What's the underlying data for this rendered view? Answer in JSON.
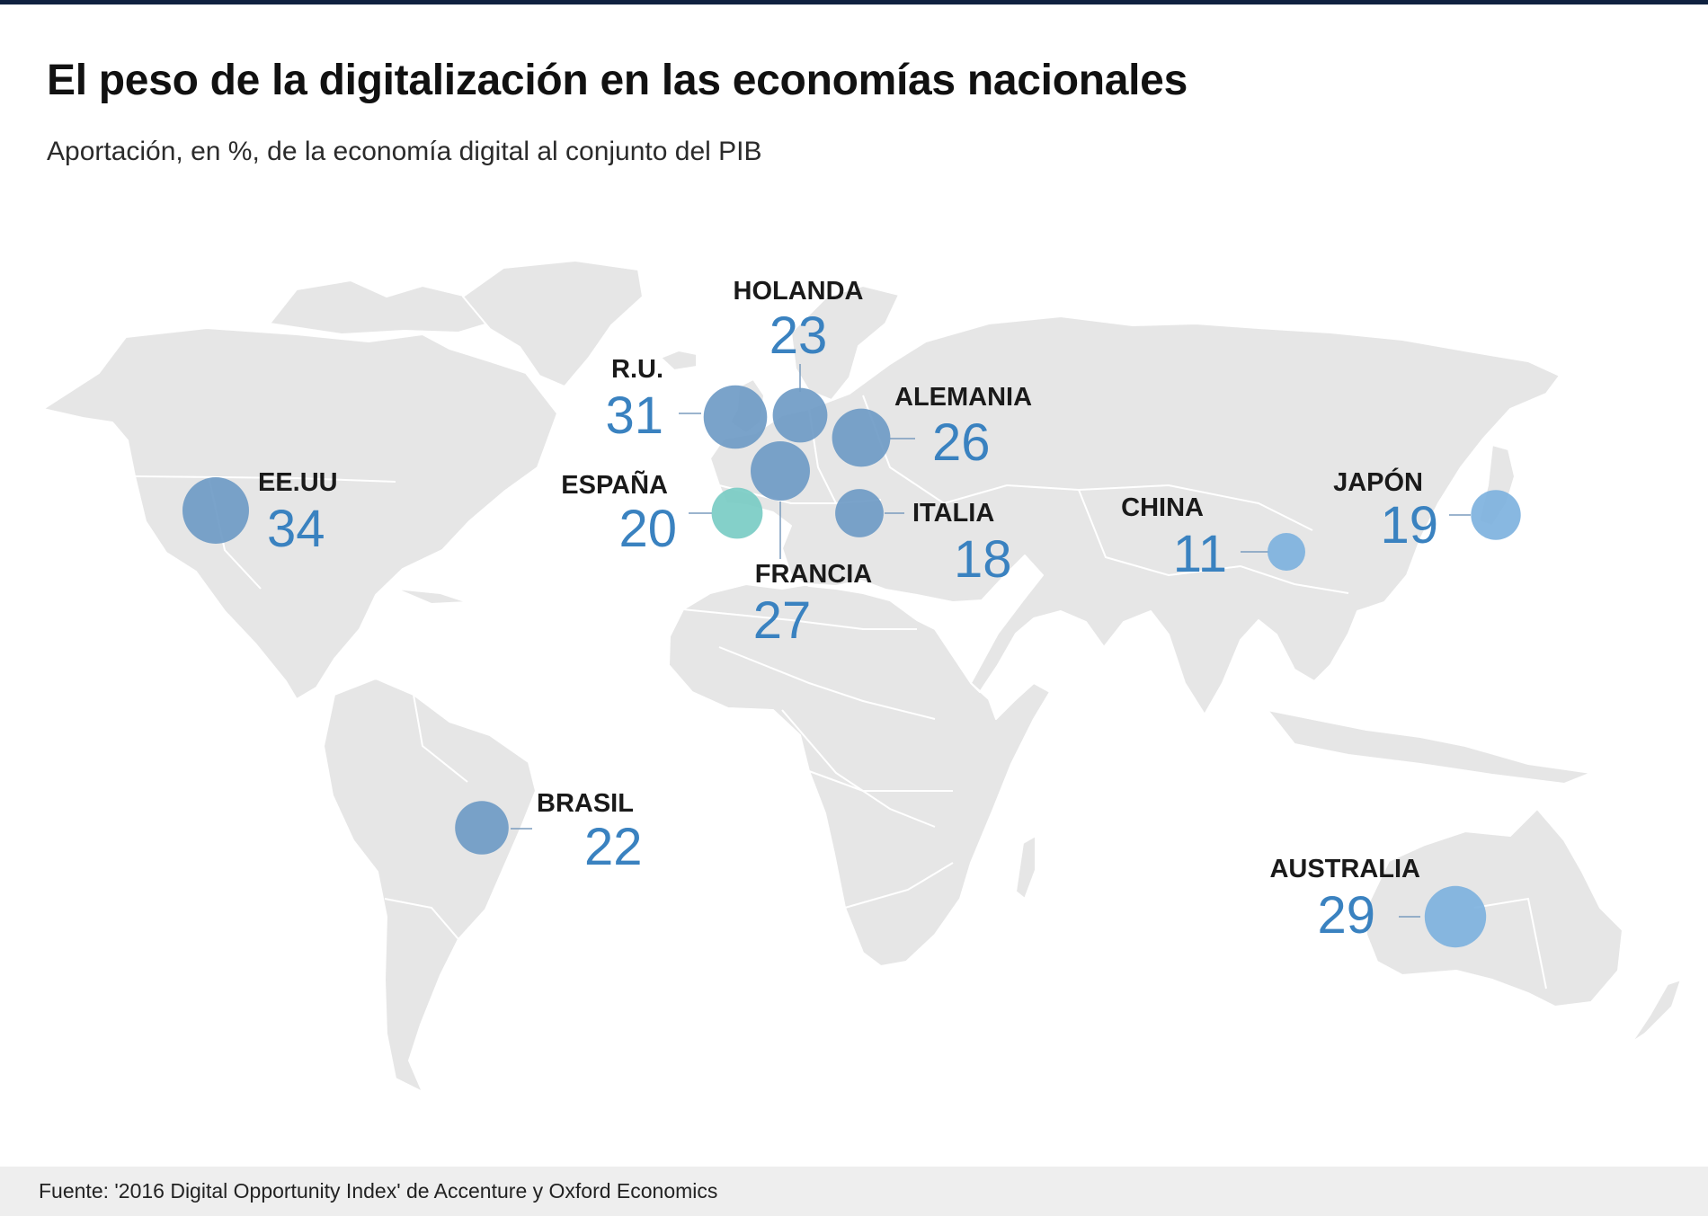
{
  "header": {
    "title": "El peso de la digitalización en las economías nacionales",
    "subtitle": "Aportación, en %, de la economía digital al conjunto del PIB"
  },
  "chart_data": {
    "type": "proportional-symbol map",
    "unit": "%",
    "countries": [
      {
        "key": "us",
        "name": "EE.UU",
        "value": 34,
        "color": "#6f9bc6"
      },
      {
        "key": "uk",
        "name": "R.U.",
        "value": 31,
        "color": "#6f9bc6"
      },
      {
        "key": "au",
        "name": "AUSTRALIA",
        "value": 29,
        "color": "#7eb2de"
      },
      {
        "key": "fr",
        "name": "FRANCIA",
        "value": 27,
        "color": "#6f9bc6"
      },
      {
        "key": "de",
        "name": "ALEMANIA",
        "value": 26,
        "color": "#6f9bc6"
      },
      {
        "key": "nl",
        "name": "HOLANDA",
        "value": 23,
        "color": "#6f9bc6"
      },
      {
        "key": "br",
        "name": "BRASIL",
        "value": 22,
        "color": "#6f9bc6"
      },
      {
        "key": "es",
        "name": "ESPAÑA",
        "value": 20,
        "color": "#79ccc4"
      },
      {
        "key": "jp",
        "name": "JAPÓN",
        "value": 19,
        "color": "#7eb2de"
      },
      {
        "key": "it",
        "name": "ITALIA",
        "value": 18,
        "color": "#6f9bc6"
      },
      {
        "key": "cn",
        "name": "CHINA",
        "value": 11,
        "color": "#7eb2de"
      }
    ]
  },
  "footer": {
    "source": "Fuente: '2016 Digital Opportunity Index' de Accenture y Oxford Economics"
  }
}
